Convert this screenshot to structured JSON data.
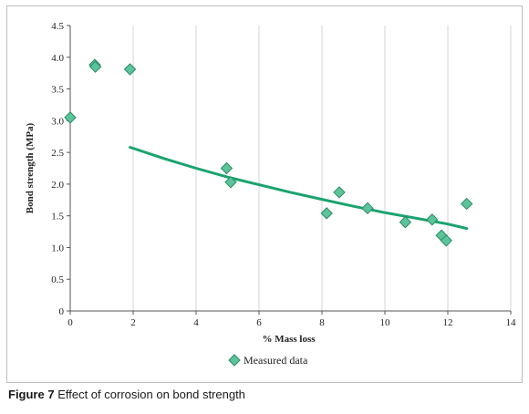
{
  "chart_data": {
    "type": "scatter",
    "xlabel": "% Mass loss",
    "ylabel": "Bond strength (MPa)",
    "xlim": [
      0,
      14
    ],
    "ylim": [
      0,
      4.5
    ],
    "x_ticks": [
      "0",
      "2",
      "4",
      "6",
      "8",
      "10",
      "12",
      "14"
    ],
    "y_ticks": [
      "0",
      "0.5",
      "1.0",
      "1.5",
      "2.0",
      "2.5",
      "3.0",
      "3.5",
      "4.0",
      "4.5"
    ],
    "grid": "vertical",
    "legend_position": "bottom",
    "series": [
      {
        "name": "Measured data",
        "marker": "diamond",
        "color": "#5cc49a",
        "points": [
          {
            "x": 0.0,
            "y": 3.05
          },
          {
            "x": 0.78,
            "y": 3.88
          },
          {
            "x": 0.8,
            "y": 3.85
          },
          {
            "x": 1.9,
            "y": 3.81
          },
          {
            "x": 4.97,
            "y": 2.25
          },
          {
            "x": 5.1,
            "y": 2.03
          },
          {
            "x": 8.15,
            "y": 1.54
          },
          {
            "x": 8.55,
            "y": 1.87
          },
          {
            "x": 9.45,
            "y": 1.62
          },
          {
            "x": 10.65,
            "y": 1.4
          },
          {
            "x": 11.5,
            "y": 1.44
          },
          {
            "x": 11.8,
            "y": 1.19
          },
          {
            "x": 11.95,
            "y": 1.11
          },
          {
            "x": 12.6,
            "y": 1.69
          }
        ]
      },
      {
        "name": "",
        "type": "line",
        "color": "#1aa36e",
        "points": [
          {
            "x": 1.9,
            "y": 2.58
          },
          {
            "x": 3,
            "y": 2.4
          },
          {
            "x": 4,
            "y": 2.25
          },
          {
            "x": 5,
            "y": 2.11
          },
          {
            "x": 6,
            "y": 1.99
          },
          {
            "x": 7,
            "y": 1.87
          },
          {
            "x": 8,
            "y": 1.76
          },
          {
            "x": 9,
            "y": 1.65
          },
          {
            "x": 10,
            "y": 1.55
          },
          {
            "x": 11,
            "y": 1.46
          },
          {
            "x": 12,
            "y": 1.37
          },
          {
            "x": 12.6,
            "y": 1.3
          }
        ]
      }
    ]
  },
  "caption": {
    "label": "Figure 7",
    "text": " Effect of corrosion on bond strength"
  }
}
